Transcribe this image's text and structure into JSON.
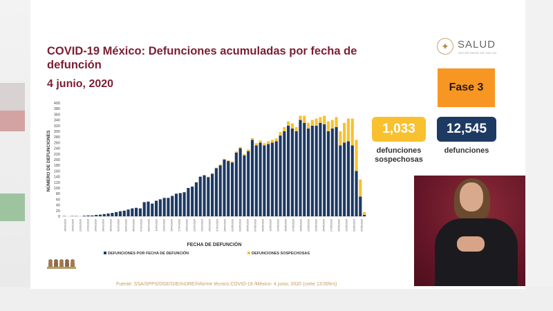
{
  "slide": {
    "title": "COVID-19 México: Defunciones acumuladas por fecha de defunción",
    "date": "4 junio, 2020",
    "brand_name": "SALUD",
    "brand_sub": "SECRETARÍA DE SALUD",
    "phase_label": "Fase 3",
    "suspected": {
      "value": "1,033",
      "label": "defunciones sospechosas"
    },
    "confirmed": {
      "value": "12,545",
      "label": "defunciones"
    },
    "footer": "Fuente: SSA/SPPS/DGE/DIE/InDRE/Informe técnico.COVID-19 /México- 4 junio, 2020 (corte 13:00hrs)",
    "colors": {
      "maroon": "#7b1e33",
      "orange": "#f79623",
      "yellow": "#f9c12f",
      "navy": "#1d3a63"
    }
  },
  "chart_data": {
    "type": "bar",
    "stacked": true,
    "xlabel": "FECHA DE DEFUNCIÓN",
    "ylabel": "NÚMERO DE DEFUNCIONES",
    "ylim": [
      0,
      400
    ],
    "yticks": [
      0,
      20,
      40,
      60,
      80,
      100,
      120,
      140,
      160,
      180,
      200,
      220,
      240,
      260,
      280,
      300,
      320,
      340,
      360,
      380,
      400
    ],
    "xticks": [
      "18/03/2020",
      "20/03/2020",
      "22/03/2020",
      "24/03/2020",
      "26/03/2020",
      "28/03/2020",
      "30/03/2020",
      "01/04/2020",
      "03/04/2020",
      "05/04/2020",
      "07/04/2020",
      "09/04/2020",
      "11/04/2020",
      "13/04/2020",
      "15/04/2020",
      "17/04/2020",
      "19/04/2020",
      "21/04/2020",
      "23/04/2020",
      "25/04/2020",
      "27/04/2020",
      "29/04/2020",
      "01/05/2020",
      "03/05/2020",
      "05/05/2020",
      "07/05/2020",
      "09/05/2020",
      "11/05/2020",
      "13/05/2020",
      "15/05/2020",
      "17/05/2020",
      "19/05/2020",
      "21/05/2020",
      "23/05/2020",
      "25/05/2020",
      "27/05/2020",
      "29/05/2020",
      "31/05/2020",
      "02/06/2020",
      "04/06/2020"
    ],
    "series": [
      {
        "name": "DEFUNCIONES POR FECHA DE DEFUNCIÓN",
        "color": "#1d3a63",
        "values": [
          1,
          0,
          1,
          1,
          0,
          2,
          3,
          3,
          5,
          6,
          8,
          10,
          12,
          15,
          18,
          20,
          24,
          28,
          30,
          28,
          50,
          52,
          45,
          55,
          60,
          65,
          65,
          72,
          80,
          82,
          85,
          100,
          105,
          120,
          140,
          145,
          138,
          150,
          170,
          180,
          200,
          195,
          190,
          225,
          240,
          215,
          230,
          270,
          250,
          260,
          250,
          255,
          260,
          265,
          285,
          300,
          320,
          310,
          300,
          340,
          330,
          310,
          320,
          320,
          330,
          325,
          300,
          310,
          315,
          250,
          260,
          265,
          250,
          160,
          70,
          5
        ]
      },
      {
        "name": "DEFUNCIONES SOSPECHOSAS",
        "color": "#f9c12f",
        "values": [
          0,
          0,
          0,
          0,
          0,
          0,
          0,
          0,
          0,
          0,
          0,
          0,
          0,
          0,
          0,
          0,
          0,
          0,
          0,
          0,
          0,
          0,
          0,
          0,
          0,
          0,
          0,
          0,
          0,
          0,
          0,
          0,
          0,
          0,
          0,
          0,
          2,
          2,
          2,
          3,
          3,
          3,
          4,
          4,
          5,
          5,
          6,
          6,
          8,
          8,
          8,
          10,
          10,
          10,
          12,
          15,
          15,
          18,
          15,
          15,
          25,
          20,
          20,
          25,
          20,
          30,
          35,
          30,
          35,
          50,
          70,
          80,
          95,
          110,
          60,
          10
        ]
      }
    ]
  }
}
